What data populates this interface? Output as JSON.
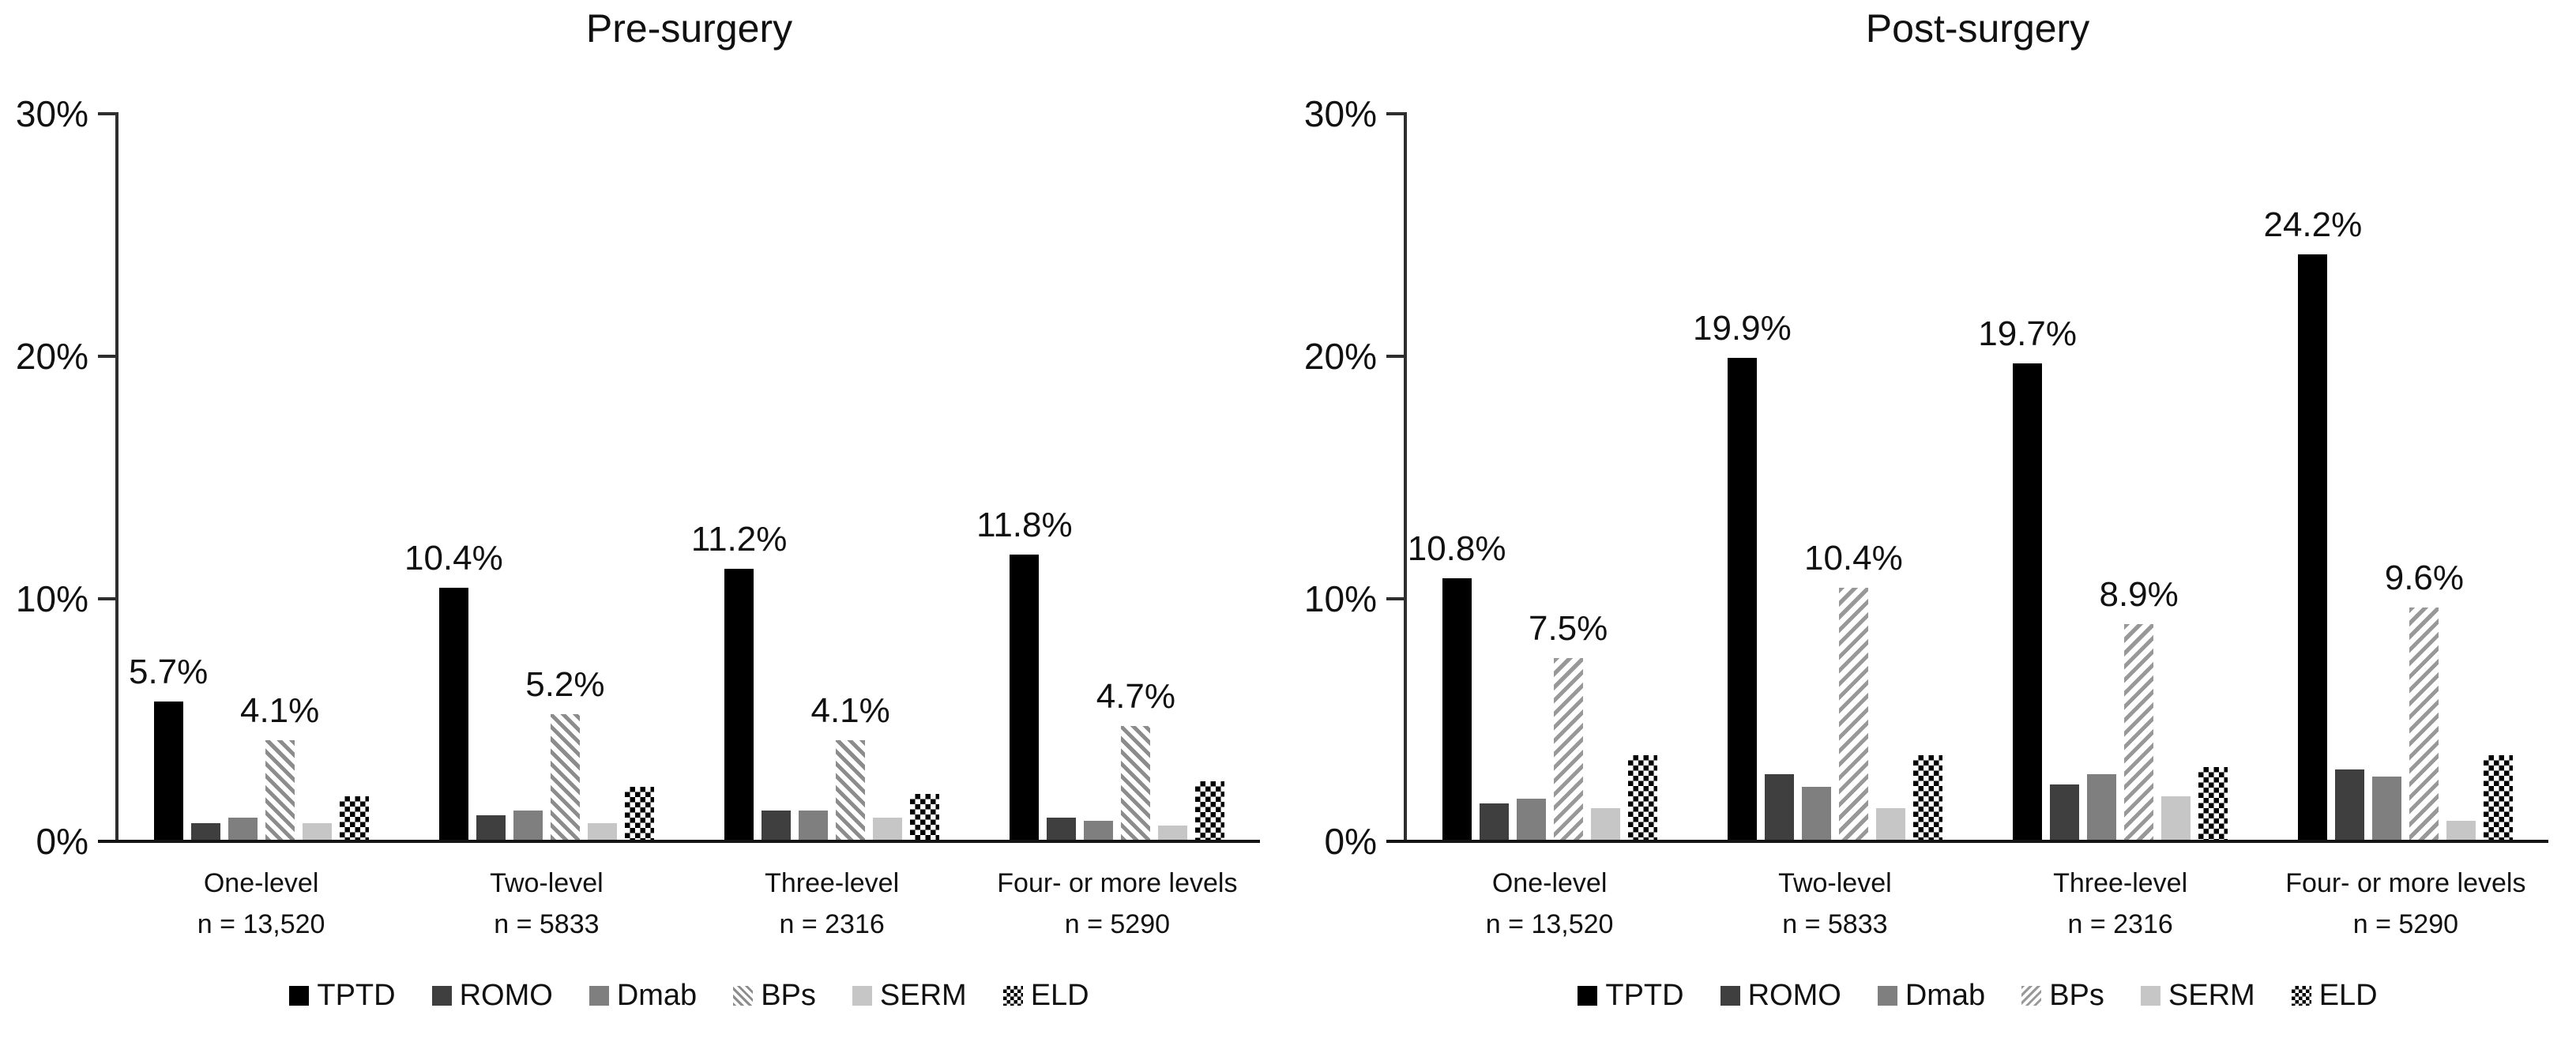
{
  "background": "#ffffff",
  "colors": {
    "tptd": "#000000",
    "romo": "#3f3f3f",
    "dmab": "#7f7f7f",
    "bps_stripe": "#8c8c8c",
    "serm": "#c6c6c6",
    "eld_pattern": "#000000",
    "axis": "#2e2e2e",
    "text": "#111111"
  },
  "chart_data": [
    {
      "type": "bar",
      "title": "Pre-surgery",
      "categories": [
        "One-level",
        "Two-level",
        "Three-level",
        "Four- or more levels"
      ],
      "category_ns": [
        "n = 13,520",
        "n = 5833",
        "n = 2316",
        "n = 5290"
      ],
      "ylim": [
        0,
        30
      ],
      "yticks": [
        "0%",
        "10%",
        "20%",
        "30%"
      ],
      "grid": false,
      "legend_position": "bottom",
      "series": [
        {
          "name": "TPTD",
          "fill": "solid-black",
          "values": [
            5.7,
            10.4,
            11.2,
            11.8
          ],
          "labels": [
            "5.7%",
            "10.4%",
            "11.2%",
            "11.8%"
          ]
        },
        {
          "name": "ROMO",
          "fill": "solid-darkgray",
          "values": [
            0.7,
            1.0,
            1.2,
            0.9
          ]
        },
        {
          "name": "Dmab",
          "fill": "solid-midgray",
          "values": [
            0.9,
            1.2,
            1.2,
            0.8
          ]
        },
        {
          "name": "BPs",
          "fill": "hatch-down",
          "values": [
            4.1,
            5.2,
            4.1,
            4.7
          ],
          "labels": [
            "4.1%",
            "5.2%",
            "4.1%",
            "4.7%"
          ]
        },
        {
          "name": "SERM",
          "fill": "solid-lightgray",
          "values": [
            0.7,
            0.7,
            0.9,
            0.6
          ]
        },
        {
          "name": "ELD",
          "fill": "checker",
          "values": [
            1.8,
            2.2,
            1.9,
            2.4
          ]
        }
      ]
    },
    {
      "type": "bar",
      "title": "Post-surgery",
      "categories": [
        "One-level",
        "Two-level",
        "Three-level",
        "Four- or more levels"
      ],
      "category_ns": [
        "n = 13,520",
        "n = 5833",
        "n = 2316",
        "n = 5290"
      ],
      "ylim": [
        0,
        30
      ],
      "yticks": [
        "0%",
        "10%",
        "20%",
        "30%"
      ],
      "grid": false,
      "legend_position": "bottom",
      "series": [
        {
          "name": "TPTD",
          "fill": "solid-black",
          "values": [
            10.8,
            19.9,
            19.7,
            24.2
          ],
          "labels": [
            "10.8%",
            "19.9%",
            "19.7%",
            "24.2%"
          ]
        },
        {
          "name": "ROMO",
          "fill": "solid-darkgray",
          "values": [
            1.5,
            2.7,
            2.3,
            2.9
          ]
        },
        {
          "name": "Dmab",
          "fill": "solid-midgray",
          "values": [
            1.7,
            2.2,
            2.7,
            2.6
          ]
        },
        {
          "name": "BPs",
          "fill": "hatch-up",
          "values": [
            7.5,
            10.4,
            8.9,
            9.6
          ],
          "labels": [
            "7.5%",
            "10.4%",
            "8.9%",
            "9.6%"
          ]
        },
        {
          "name": "SERM",
          "fill": "solid-lightgray",
          "values": [
            1.3,
            1.3,
            1.8,
            0.8
          ]
        },
        {
          "name": "ELD",
          "fill": "checker",
          "values": [
            3.5,
            3.5,
            3.0,
            3.5
          ]
        }
      ]
    }
  ]
}
